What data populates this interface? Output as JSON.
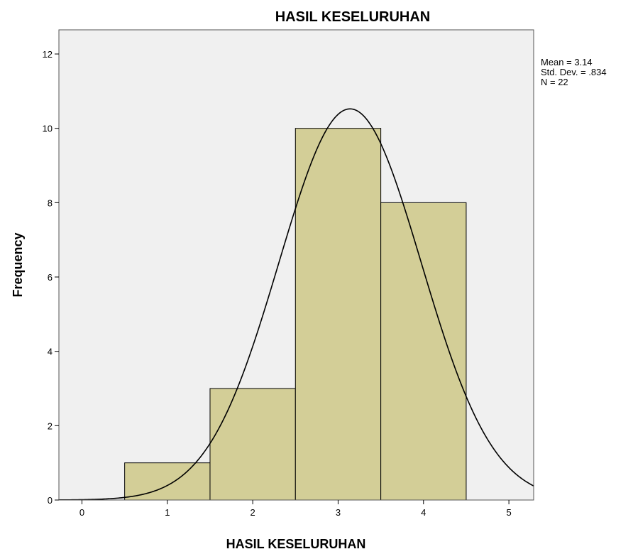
{
  "chart_data": {
    "type": "histogram",
    "title": "HASIL KESELURUHAN",
    "x_label": "HASIL KESELURUHAN",
    "y_label": "Frequency",
    "bins": [
      0.5,
      1.5,
      2.5,
      3.5,
      4.5
    ],
    "values": [
      1,
      3,
      10,
      8
    ],
    "color": "#d3ce97",
    "edge_color": "#000000",
    "background": "#f0f0f0",
    "xlim": [
      -0.27,
      5.29
    ],
    "xticks": [
      0,
      1,
      2,
      3,
      4,
      5
    ],
    "ylim": [
      0,
      12.65
    ],
    "yticks": [
      0,
      2,
      4,
      6,
      8,
      10,
      12
    ],
    "normal_curve": {
      "mean": 3.14,
      "std_dev": 0.834,
      "n": 22,
      "bin_width": 1
    },
    "stats_labels": [
      "Mean = 3.14",
      "Std. Dev. = .834",
      "N = 22"
    ]
  }
}
